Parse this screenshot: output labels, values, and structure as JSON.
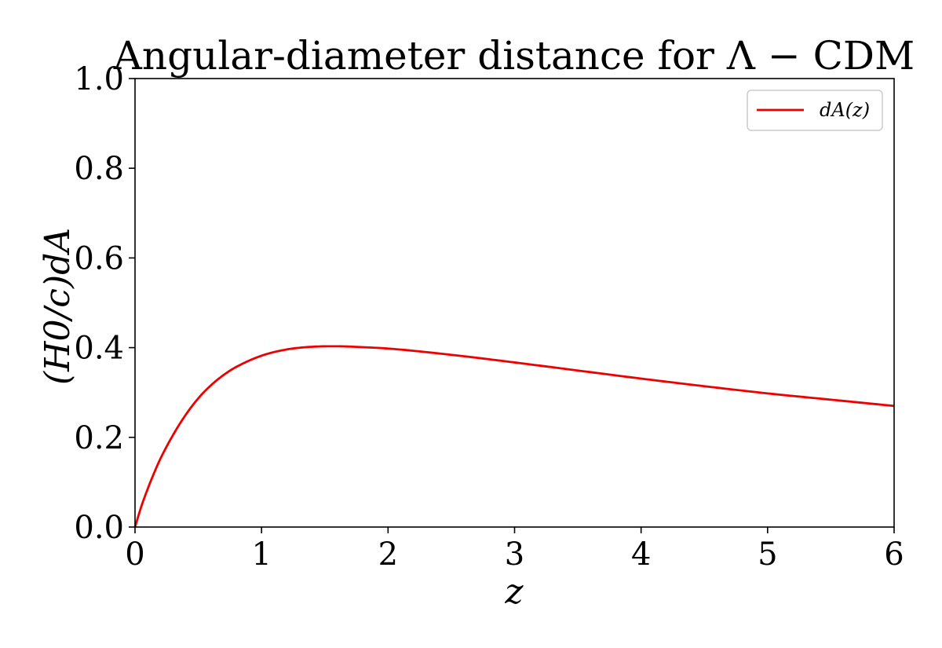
{
  "chart_data": {
    "type": "line",
    "title": "Angular-diameter distance for Λ − CDM",
    "xlabel": "z",
    "ylabel": "(H0/c)dA",
    "xlim": [
      0,
      6
    ],
    "ylim": [
      0,
      1.0
    ],
    "xticks": [
      "0",
      "1",
      "2",
      "3",
      "4",
      "5",
      "6"
    ],
    "yticks": [
      "0.0",
      "0.2",
      "0.4",
      "0.6",
      "0.8",
      "1.0"
    ],
    "grid": false,
    "legend_position": "top-right",
    "series": [
      {
        "name": "dA(z)",
        "color": "#ee0000",
        "x": [
          0,
          0.05,
          0.1,
          0.15,
          0.2,
          0.3,
          0.4,
          0.5,
          0.6,
          0.7,
          0.8,
          1.0,
          1.2,
          1.4,
          1.6,
          1.8,
          2.0,
          2.5,
          3.0,
          3.5,
          4.0,
          4.5,
          5.0,
          5.5,
          6.0
        ],
        "y": [
          0,
          0.046,
          0.085,
          0.12,
          0.152,
          0.205,
          0.25,
          0.287,
          0.316,
          0.339,
          0.357,
          0.382,
          0.396,
          0.402,
          0.403,
          0.401,
          0.398,
          0.384,
          0.367,
          0.349,
          0.331,
          0.314,
          0.298,
          0.284,
          0.27
        ]
      }
    ]
  }
}
